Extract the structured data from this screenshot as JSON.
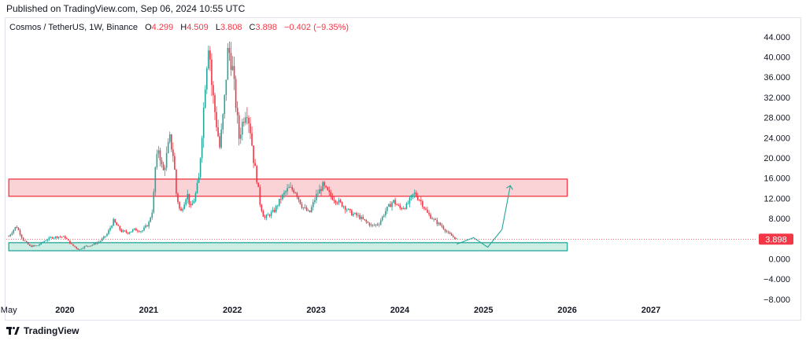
{
  "header": {
    "published": "Published on TradingView.com, Sep 06, 2024 10:55 UTC"
  },
  "legend": {
    "symbol": "Cosmos / TetherUS, 1W, Binance",
    "open_label": "O",
    "open": "4.299",
    "high_label": "H",
    "high": "4.509",
    "low_label": "L",
    "low": "3.808",
    "close_label": "C",
    "close": "3.898",
    "change": "−0.402 (−9.35%)"
  },
  "footer": {
    "brand": "TradingView"
  },
  "colors": {
    "up": "#26a69a",
    "down": "#f23645",
    "resistance_fill": "#f9d3d6",
    "support_fill": "#cdeee4",
    "projection": "#26a69a"
  },
  "chart_data": {
    "type": "candlestick",
    "y_ticks": [
      "44.000",
      "40.000",
      "36.000",
      "32.000",
      "28.000",
      "24.000",
      "20.000",
      "16.000",
      "12.000",
      "8.000",
      "4.000",
      "0.000",
      "−4.000",
      "−8.000"
    ],
    "y_tick_values": [
      44,
      40,
      36,
      32,
      28,
      24,
      20,
      16,
      12,
      8,
      4,
      0,
      -4,
      -8
    ],
    "ylim": [
      -8.5,
      46
    ],
    "x_ticks": [
      "May",
      "2020",
      "2021",
      "2022",
      "2023",
      "2024",
      "2025",
      "2026",
      "2027"
    ],
    "x_tick_values": [
      2019.33,
      2020.0,
      2021.0,
      2022.0,
      2023.0,
      2024.0,
      2025.0,
      2026.0,
      2027.0
    ],
    "xlim": [
      2019.3,
      2028.25
    ],
    "last_price": "3.898",
    "last_price_value": 3.898,
    "zones": [
      {
        "name": "resistance",
        "x": [
          2019.33,
          2026.0
        ],
        "y": [
          12.4,
          15.8
        ]
      },
      {
        "name": "support",
        "x": [
          2019.33,
          2026.0
        ],
        "y": [
          1.6,
          3.2
        ]
      }
    ],
    "projection": {
      "x": [
        2024.68,
        2024.88,
        2025.05,
        2025.22,
        2025.32
      ],
      "y": [
        2.9,
        4.2,
        2.3,
        5.8,
        14.5
      ]
    },
    "price_path": {
      "x": [
        2019.33,
        2019.42,
        2019.5,
        2019.58,
        2019.67,
        2019.75,
        2019.83,
        2019.92,
        2020.0,
        2020.08,
        2020.17,
        2020.2,
        2020.25,
        2020.33,
        2020.42,
        2020.5,
        2020.58,
        2020.67,
        2020.75,
        2020.83,
        2020.92,
        2021.0,
        2021.05,
        2021.08,
        2021.12,
        2021.17,
        2021.2,
        2021.25,
        2021.3,
        2021.33,
        2021.38,
        2021.42,
        2021.46,
        2021.5,
        2021.55,
        2021.6,
        2021.65,
        2021.68,
        2021.72,
        2021.75,
        2021.8,
        2021.85,
        2021.9,
        2021.95,
        2022.0,
        2022.04,
        2022.08,
        2022.12,
        2022.17,
        2022.22,
        2022.25,
        2022.3,
        2022.33,
        2022.38,
        2022.42,
        2022.5,
        2022.58,
        2022.67,
        2022.75,
        2022.83,
        2022.92,
        2023.0,
        2023.08,
        2023.17,
        2023.25,
        2023.33,
        2023.42,
        2023.5,
        2023.58,
        2023.67,
        2023.75,
        2023.83,
        2023.92,
        2024.0,
        2024.08,
        2024.17,
        2024.25,
        2024.33,
        2024.42,
        2024.5,
        2024.58,
        2024.68
      ],
      "y": [
        4.5,
        6.5,
        3.8,
        2.5,
        2.6,
        3.5,
        4.2,
        4.4,
        4.3,
        2.8,
        1.8,
        2.2,
        2.5,
        2.8,
        3.5,
        4.8,
        7.5,
        5.5,
        5.2,
        5.8,
        5.5,
        7.0,
        10.0,
        18.0,
        22.0,
        17.0,
        19.0,
        24.0,
        20.0,
        13.0,
        9.0,
        11.0,
        13.0,
        10.0,
        12.0,
        16.0,
        28.0,
        36.0,
        44.0,
        35.0,
        28.0,
        22.0,
        30.0,
        42.0,
        38.0,
        31.0,
        24.0,
        27.0,
        30.0,
        25.0,
        20.0,
        15.0,
        11.0,
        8.0,
        8.5,
        9.5,
        12.0,
        14.0,
        13.5,
        10.5,
        9.0,
        12.5,
        14.5,
        12.5,
        11.5,
        10.5,
        9.0,
        8.5,
        7.5,
        6.5,
        7.0,
        9.5,
        11.5,
        10.0,
        10.5,
        13.0,
        11.5,
        9.0,
        7.5,
        6.5,
        5.0,
        3.9
      ]
    }
  }
}
